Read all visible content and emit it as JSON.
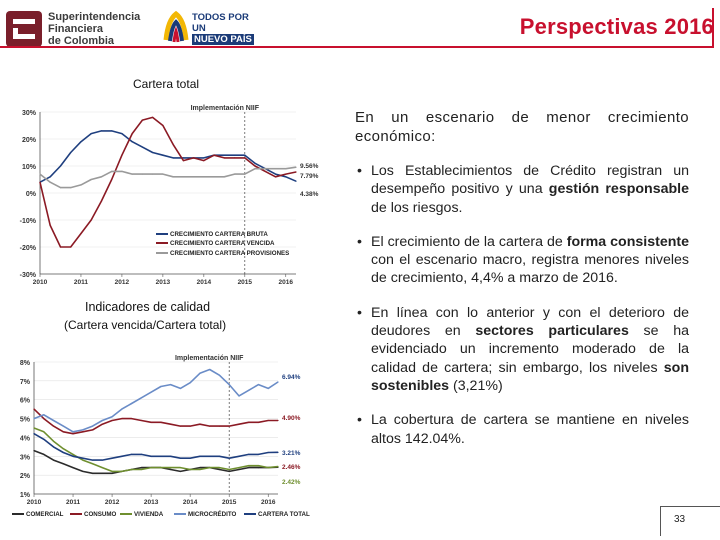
{
  "header": {
    "org_name_lines": [
      "Superintendencia",
      "Financiera",
      "de Colombia"
    ],
    "gov_brand_lines": [
      "TODOS POR UN",
      "NUEVO PAÍS"
    ],
    "title": "Perspectivas 2016"
  },
  "colors": {
    "title_red": "#c8102e",
    "bruta": "#1f3f7f",
    "vencida": "#8b1a24",
    "provisiones": "#9a9a9a"
  },
  "chart1": {
    "caption": "Cartera total"
  },
  "chart2": {
    "caption": "Indicadores de calidad",
    "subcaption": "(Cartera vencida/Cartera total)"
  },
  "text": {
    "lead": "En un escenario de menor crecimiento económico:",
    "b1_a": "Los Establecimientos de Crédito registran un desempeño positivo y una ",
    "b1_bold": "gestión responsable",
    "b1_c": " de los riesgos.",
    "b2_a": "El crecimiento de la cartera de ",
    "b2_bold": "forma consistente",
    "b2_c": " con el escenario macro, registra menores niveles de crecimiento, 4,4% a marzo de 2016.",
    "b3_a": "En línea con lo anterior y con el deterioro de deudores en ",
    "b3_bold1": "sectores particulares",
    "b3_c": " se ha evidenciado un incremento moderado de la calidad de cartera; sin embargo, los niveles ",
    "b3_bold2": "son sostenibles",
    "b3_d": " (3,21%)",
    "b4": "La cobertura de cartera se mantiene en niveles altos 142.04%."
  },
  "page_number": "33",
  "chart_data": [
    {
      "type": "line",
      "annotation": "Implementación NIIF",
      "annotation_x": 2015.0,
      "ylim": [
        -30,
        30
      ],
      "yticks": [
        "30%",
        "20%",
        "10%",
        "0%",
        "-10%",
        "-20%",
        "-30%"
      ],
      "ytick_values": [
        30,
        20,
        10,
        0,
        -10,
        -20,
        -30
      ],
      "xlim": [
        2010,
        2016.25
      ],
      "xticks": [
        "2010",
        "2011",
        "2012",
        "2013",
        "2014",
        "2015",
        "2016"
      ],
      "xtick_values": [
        2010,
        2011,
        2012,
        2013,
        2014,
        2015,
        2016
      ],
      "series": [
        {
          "name": "CRECIMIENTO CARTERA BRUTA",
          "color": "#1f3f7f",
          "end_label": "4.38%",
          "x": [
            2010.0,
            2010.25,
            2010.5,
            2010.75,
            2011.0,
            2011.25,
            2011.5,
            2011.75,
            2012.0,
            2012.25,
            2012.5,
            2012.75,
            2013.0,
            2013.25,
            2013.5,
            2013.75,
            2014.0,
            2014.25,
            2014.5,
            2014.75,
            2015.0,
            2015.25,
            2015.5,
            2015.75,
            2016.0,
            2016.25
          ],
          "y": [
            4,
            6,
            10,
            15,
            19,
            22,
            23,
            23,
            22,
            19,
            17,
            15,
            14,
            13,
            13,
            13,
            13,
            14,
            14,
            14,
            14,
            11,
            9,
            7,
            6,
            4.38
          ]
        },
        {
          "name": "CRECIMIENTO CARTERA VENCIDA",
          "color": "#8b1a24",
          "end_label": "7.79%",
          "x": [
            2010.0,
            2010.25,
            2010.5,
            2010.75,
            2011.0,
            2011.25,
            2011.5,
            2011.75,
            2012.0,
            2012.25,
            2012.5,
            2012.75,
            2013.0,
            2013.25,
            2013.5,
            2013.75,
            2014.0,
            2014.25,
            2014.5,
            2014.75,
            2015.0,
            2015.25,
            2015.5,
            2015.75,
            2016.0,
            2016.25
          ],
          "y": [
            4,
            -12,
            -20,
            -20,
            -15,
            -10,
            -3,
            5,
            14,
            22,
            27,
            28,
            25,
            18,
            12,
            13,
            12,
            14,
            13,
            13,
            13,
            10,
            8,
            6,
            7,
            7.79
          ]
        },
        {
          "name": "CRECIMIENTO CARTERA PROVISIONES",
          "color": "#9a9a9a",
          "end_label": "9.56%",
          "x": [
            2010.0,
            2010.25,
            2010.5,
            2010.75,
            2011.0,
            2011.25,
            2011.5,
            2011.75,
            2012.0,
            2012.25,
            2012.5,
            2012.75,
            2013.0,
            2013.25,
            2013.5,
            2013.75,
            2014.0,
            2014.25,
            2014.5,
            2014.75,
            2015.0,
            2015.25,
            2015.5,
            2015.75,
            2016.0,
            2016.25
          ],
          "y": [
            7,
            4,
            2,
            2,
            3,
            5,
            6,
            8,
            8,
            7,
            7,
            7,
            7,
            6,
            6,
            6,
            6,
            6,
            6,
            7,
            7,
            9,
            9,
            9,
            9,
            9.56
          ]
        }
      ]
    },
    {
      "type": "line",
      "annotation": "Implementación NIIF",
      "annotation_x": 2015.0,
      "ylim": [
        1,
        8
      ],
      "yticks": [
        "8%",
        "7%",
        "6%",
        "5%",
        "4%",
        "3%",
        "2%",
        "1%"
      ],
      "ytick_values": [
        8,
        7,
        6,
        5,
        4,
        3,
        2,
        1
      ],
      "xlim": [
        2010,
        2016.25
      ],
      "xticks": [
        "2010",
        "2011",
        "2012",
        "2013",
        "2014",
        "2015",
        "2016"
      ],
      "xtick_values": [
        2010,
        2011,
        2012,
        2013,
        2014,
        2015,
        2016
      ],
      "series": [
        {
          "name": "COMERCIAL",
          "color": "#2b2b2b",
          "end_label": "2.42%",
          "x": [
            2010.0,
            2010.25,
            2010.5,
            2010.75,
            2011.0,
            2011.25,
            2011.5,
            2011.75,
            2012.0,
            2012.25,
            2012.5,
            2012.75,
            2013.0,
            2013.25,
            2013.5,
            2013.75,
            2014.0,
            2014.25,
            2014.5,
            2014.75,
            2015.0,
            2015.25,
            2015.5,
            2015.75,
            2016.0,
            2016.25
          ],
          "y": [
            3.3,
            3.1,
            2.8,
            2.6,
            2.4,
            2.2,
            2.1,
            2.1,
            2.1,
            2.2,
            2.3,
            2.4,
            2.4,
            2.4,
            2.3,
            2.2,
            2.3,
            2.4,
            2.4,
            2.3,
            2.2,
            2.3,
            2.4,
            2.4,
            2.4,
            2.42
          ]
        },
        {
          "name": "CONSUMO",
          "color": "#8b1a24",
          "end_label": "4.90%",
          "x": [
            2010.0,
            2010.25,
            2010.5,
            2010.75,
            2011.0,
            2011.25,
            2011.5,
            2011.75,
            2012.0,
            2012.25,
            2012.5,
            2012.75,
            2013.0,
            2013.25,
            2013.5,
            2013.75,
            2014.0,
            2014.25,
            2014.5,
            2014.75,
            2015.0,
            2015.25,
            2015.5,
            2015.75,
            2016.0,
            2016.25
          ],
          "y": [
            5.5,
            5.0,
            4.6,
            4.3,
            4.2,
            4.3,
            4.4,
            4.7,
            4.9,
            5.0,
            5.0,
            4.9,
            4.8,
            4.8,
            4.7,
            4.6,
            4.6,
            4.7,
            4.6,
            4.6,
            4.6,
            4.7,
            4.8,
            4.8,
            4.9,
            4.9
          ]
        },
        {
          "name": "VIVIENDA",
          "color": "#6f8f2f",
          "end_label": "2.46%",
          "x": [
            2010.0,
            2010.25,
            2010.5,
            2010.75,
            2011.0,
            2011.25,
            2011.5,
            2011.75,
            2012.0,
            2012.25,
            2012.5,
            2012.75,
            2013.0,
            2013.25,
            2013.5,
            2013.75,
            2014.0,
            2014.25,
            2014.5,
            2014.75,
            2015.0,
            2015.25,
            2015.5,
            2015.75,
            2016.0,
            2016.25
          ],
          "y": [
            4.5,
            4.3,
            3.8,
            3.4,
            3.1,
            2.8,
            2.6,
            2.4,
            2.2,
            2.2,
            2.3,
            2.3,
            2.4,
            2.4,
            2.4,
            2.4,
            2.3,
            2.3,
            2.4,
            2.4,
            2.3,
            2.4,
            2.5,
            2.5,
            2.4,
            2.46
          ]
        },
        {
          "name": "MICROCRÉDITO",
          "color": "#6a8cc7",
          "end_label": "6.94%",
          "x": [
            2010.0,
            2010.25,
            2010.5,
            2010.75,
            2011.0,
            2011.25,
            2011.5,
            2011.75,
            2012.0,
            2012.25,
            2012.5,
            2012.75,
            2013.0,
            2013.25,
            2013.5,
            2013.75,
            2014.0,
            2014.25,
            2014.5,
            2014.75,
            2015.0,
            2015.25,
            2015.5,
            2015.75,
            2016.0,
            2016.25
          ],
          "y": [
            5.0,
            5.2,
            4.9,
            4.6,
            4.3,
            4.4,
            4.6,
            4.9,
            5.1,
            5.5,
            5.8,
            6.1,
            6.4,
            6.7,
            6.8,
            6.6,
            6.9,
            7.4,
            7.6,
            7.3,
            6.8,
            6.2,
            6.5,
            6.8,
            6.6,
            6.94
          ]
        },
        {
          "name": "CARTERA TOTAL",
          "color": "#1f3f7f",
          "end_label": "3.21%",
          "x": [
            2010.0,
            2010.25,
            2010.5,
            2010.75,
            2011.0,
            2011.25,
            2011.5,
            2011.75,
            2012.0,
            2012.25,
            2012.5,
            2012.75,
            2013.0,
            2013.25,
            2013.5,
            2013.75,
            2014.0,
            2014.25,
            2014.5,
            2014.75,
            2015.0,
            2015.25,
            2015.5,
            2015.75,
            2016.0,
            2016.25
          ],
          "y": [
            4.2,
            3.9,
            3.5,
            3.2,
            3.0,
            2.9,
            2.8,
            2.8,
            2.9,
            3.0,
            3.1,
            3.1,
            3.0,
            3.0,
            3.0,
            2.9,
            2.9,
            3.0,
            3.0,
            3.0,
            2.9,
            3.0,
            3.1,
            3.1,
            3.2,
            3.21
          ]
        }
      ]
    }
  ]
}
